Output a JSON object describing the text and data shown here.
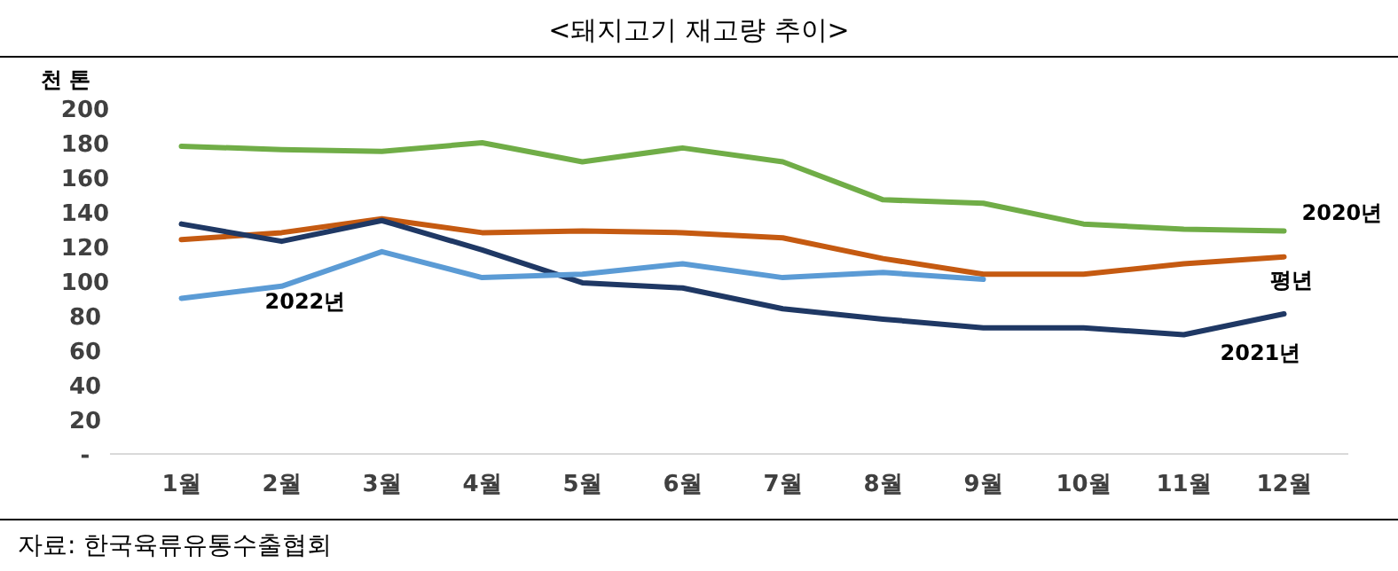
{
  "chart_data": {
    "type": "line",
    "title": "<돼지고기 재고량 추이>",
    "ylabel": "천 톤",
    "categories": [
      "1월",
      "2월",
      "3월",
      "4월",
      "5월",
      "6월",
      "7월",
      "8월",
      "9월",
      "10월",
      "11월",
      "12월"
    ],
    "series": [
      {
        "name": "2020년",
        "color": "#70ad47",
        "values": [
          178,
          176,
          175,
          180,
          169,
          177,
          169,
          147,
          145,
          133,
          130,
          129
        ]
      },
      {
        "name": "평년",
        "color": "#c55a11",
        "values": [
          124,
          128,
          136,
          128,
          129,
          128,
          125,
          113,
          104,
          104,
          110,
          114
        ]
      },
      {
        "name": "2021년",
        "color": "#1f3864",
        "values": [
          133,
          123,
          135,
          118,
          99,
          96,
          84,
          78,
          73,
          73,
          69,
          81
        ]
      },
      {
        "name": "2022년",
        "color": "#5b9bd5",
        "values": [
          90,
          97,
          117,
          102,
          104,
          110,
          102,
          105,
          101,
          null,
          null,
          null
        ]
      }
    ],
    "ylim": [
      0,
      200
    ],
    "yticks": [
      {
        "value": 0,
        "label": "-"
      },
      20,
      40,
      60,
      80,
      100,
      120,
      140,
      160,
      180,
      200
    ],
    "grid": false,
    "legend": false,
    "marker": "none",
    "line_style": "solid",
    "annotations": [
      "자료: 한국육류유통수출협회"
    ]
  }
}
